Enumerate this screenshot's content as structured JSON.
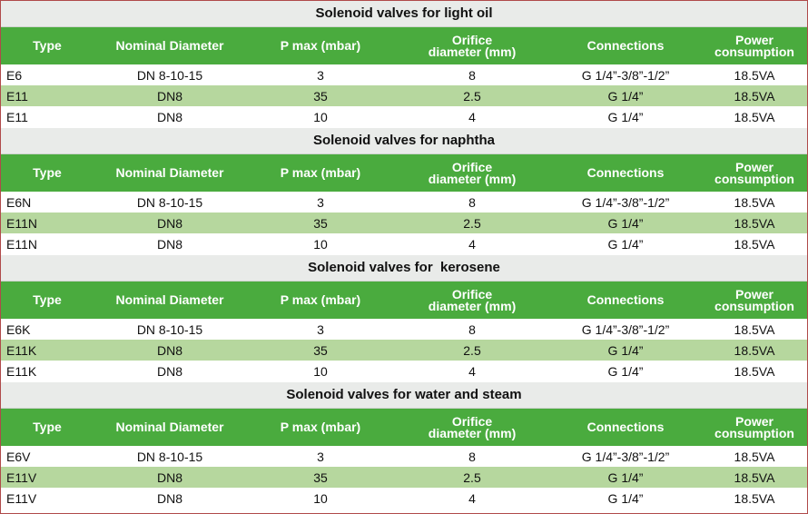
{
  "headers": {
    "type": "Type",
    "nominal_diameter": "Nominal Diameter",
    "p_max": "P max (mbar)",
    "orifice_line1": "Orifice",
    "orifice_line2": "diameter (mm)",
    "connections": "Connections",
    "power_line1": "Power",
    "power_line2": "consumption"
  },
  "sections": [
    {
      "title": "Solenoid valves for light oil",
      "rows": [
        {
          "type": "E6",
          "dn": "DN 8-10-15",
          "pmax": "3",
          "orifice": "8",
          "conn": "G 1/4”-3/8”-1/2”",
          "power": "18.5VA"
        },
        {
          "type": "E11",
          "dn": "DN8",
          "pmax": "35",
          "orifice": "2.5",
          "conn": "G 1/4”",
          "power": "18.5VA"
        },
        {
          "type": "E11",
          "dn": "DN8",
          "pmax": "10",
          "orifice": "4",
          "conn": "G 1/4”",
          "power": "18.5VA"
        }
      ]
    },
    {
      "title": "Solenoid valves for naphtha",
      "rows": [
        {
          "type": "E6N",
          "dn": "DN 8-10-15",
          "pmax": "3",
          "orifice": "8",
          "conn": "G 1/4”-3/8”-1/2”",
          "power": "18.5VA"
        },
        {
          "type": "E11N",
          "dn": "DN8",
          "pmax": "35",
          "orifice": "2.5",
          "conn": "G 1/4”",
          "power": "18.5VA"
        },
        {
          "type": "E11N",
          "dn": "DN8",
          "pmax": "10",
          "orifice": "4",
          "conn": "G 1/4”",
          "power": "18.5VA"
        }
      ]
    },
    {
      "title": "Solenoid valves for  kerosene",
      "rows": [
        {
          "type": "E6K",
          "dn": "DN 8-10-15",
          "pmax": "3",
          "orifice": "8",
          "conn": "G 1/4”-3/8”-1/2”",
          "power": "18.5VA"
        },
        {
          "type": "E11K",
          "dn": "DN8",
          "pmax": "35",
          "orifice": "2.5",
          "conn": "G 1/4”",
          "power": "18.5VA"
        },
        {
          "type": "E11K",
          "dn": "DN8",
          "pmax": "10",
          "orifice": "4",
          "conn": "G 1/4”",
          "power": "18.5VA"
        }
      ]
    },
    {
      "title": "Solenoid valves for water and steam",
      "rows": [
        {
          "type": "E6V",
          "dn": "DN 8-10-15",
          "pmax": "3",
          "orifice": "8",
          "conn": "G 1/4”-3/8”-1/2”",
          "power": "18.5VA"
        },
        {
          "type": "E11V",
          "dn": "DN8",
          "pmax": "35",
          "orifice": "2.5",
          "conn": "G 1/4”",
          "power": "18.5VA"
        },
        {
          "type": "E11V",
          "dn": "DN8",
          "pmax": "10",
          "orifice": "4",
          "conn": "G 1/4”",
          "power": "18.5VA"
        }
      ]
    }
  ],
  "colors": {
    "header_green": "#4aab3e",
    "row_alt_green": "#b6d79e",
    "title_bg": "#e9ebe9",
    "border": "#b04a4a"
  }
}
